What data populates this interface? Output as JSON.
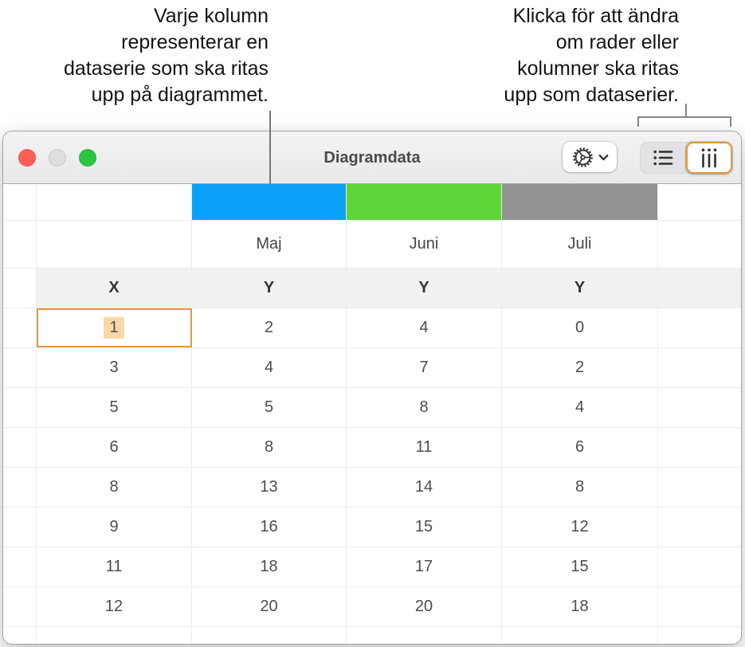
{
  "callouts": {
    "left": {
      "lines": [
        "Varje kolumn",
        "representerar en",
        "dataserie som ska ritas",
        "upp på diagrammet."
      ]
    },
    "right": {
      "lines": [
        "Klicka för att ändra",
        "om rader eller",
        "kolumner ska ritas",
        "upp som dataserier."
      ]
    }
  },
  "window": {
    "title": "Diagramdata",
    "traffic_lights": [
      {
        "name": "close",
        "color": "#fe5f57"
      },
      {
        "name": "minimize",
        "color": "#dedede"
      },
      {
        "name": "zoom",
        "color": "#2bc63f"
      }
    ],
    "toggle": {
      "options": [
        "rows",
        "columns"
      ],
      "selected": "columns"
    },
    "icons": [
      "gear-icon",
      "chevron-down-icon",
      "rows-icon",
      "columns-icon"
    ]
  },
  "table": {
    "series_colors": [
      "#0aa0f7",
      "#5ed63a",
      "#949494"
    ],
    "month_headers": [
      "Maj",
      "Juni",
      "Juli"
    ],
    "axis_headers": [
      "X",
      "Y",
      "Y",
      "Y"
    ],
    "rows": [
      [
        "1",
        "2",
        "4",
        "0"
      ],
      [
        "3",
        "4",
        "7",
        "2"
      ],
      [
        "5",
        "5",
        "8",
        "4"
      ],
      [
        "6",
        "8",
        "11",
        "6"
      ],
      [
        "8",
        "13",
        "14",
        "8"
      ],
      [
        "9",
        "16",
        "15",
        "12"
      ],
      [
        "11",
        "18",
        "17",
        "15"
      ],
      [
        "12",
        "20",
        "20",
        "18"
      ]
    ],
    "selected_cell": {
      "row": 0,
      "col": 0,
      "value": "1"
    }
  }
}
